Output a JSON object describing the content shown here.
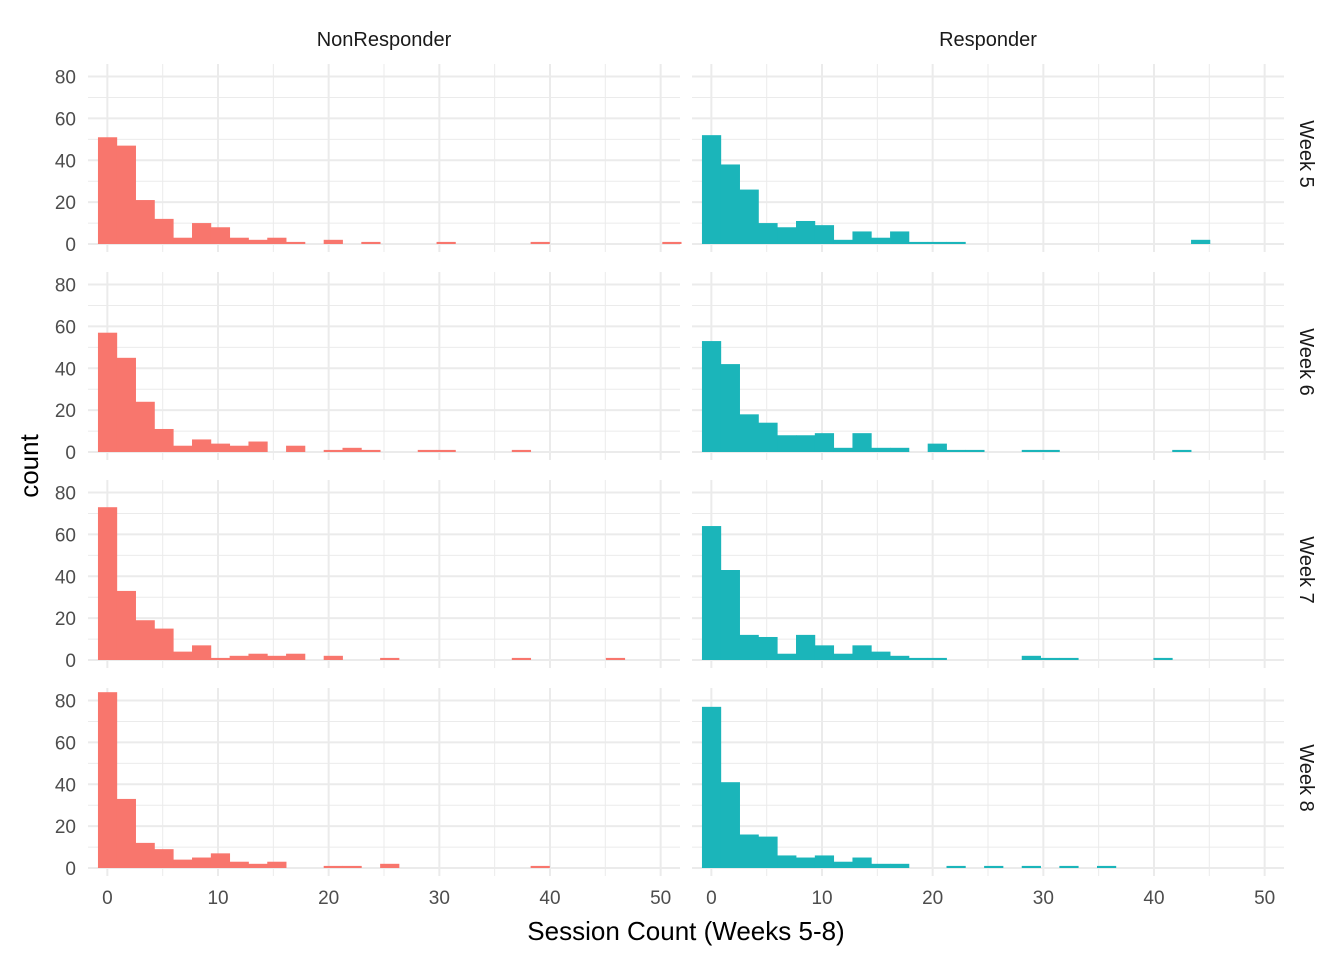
{
  "chart_data": {
    "type": "bar",
    "subtype": "histogram",
    "xlabel": "Session Count (Weeks 5-8)",
    "ylabel": "count",
    "x_ticks": [
      0,
      10,
      20,
      30,
      40,
      50
    ],
    "y_ticks": [
      0,
      20,
      40,
      60,
      80
    ],
    "xlim": [
      -1.75,
      51.75
    ],
    "ylim": [
      0,
      86
    ],
    "bin_width": 1.7,
    "bin_start": -0.85,
    "columns": [
      "NonResponder",
      "Responder"
    ],
    "rows": [
      "Week 5",
      "Week 6",
      "Week 7",
      "Week 8"
    ],
    "colors": {
      "NonResponder": "#f8766d",
      "Responder": "#1bb5ba"
    },
    "panels": [
      {
        "group": "NonResponder",
        "week": "Week 5",
        "counts": [
          51,
          47,
          21,
          12,
          3,
          10,
          8,
          3,
          2,
          3,
          1,
          0,
          2,
          0,
          1,
          0,
          0,
          0,
          1,
          0,
          0,
          0,
          0,
          1,
          0,
          0,
          0,
          0,
          0,
          0,
          1
        ]
      },
      {
        "group": "Responder",
        "week": "Week 5",
        "counts": [
          52,
          38,
          26,
          10,
          8,
          11,
          9,
          2,
          6,
          3,
          6,
          1,
          1,
          1,
          0,
          0,
          0,
          0,
          0,
          0,
          0,
          0,
          0,
          0,
          0,
          0,
          2
        ]
      },
      {
        "group": "NonResponder",
        "week": "Week 6",
        "counts": [
          57,
          45,
          24,
          11,
          3,
          6,
          4,
          3,
          5,
          0,
          3,
          0,
          1,
          2,
          1,
          0,
          0,
          1,
          1,
          0,
          0,
          0,
          1
        ]
      },
      {
        "group": "Responder",
        "week": "Week 6",
        "counts": [
          53,
          42,
          18,
          14,
          8,
          8,
          9,
          2,
          9,
          2,
          2,
          0,
          4,
          1,
          1,
          0,
          0,
          1,
          1,
          0,
          0,
          0,
          0,
          0,
          0,
          1
        ]
      },
      {
        "group": "NonResponder",
        "week": "Week 7",
        "counts": [
          73,
          33,
          19,
          15,
          4,
          7,
          1,
          2,
          3,
          2,
          3,
          0,
          2,
          0,
          0,
          1,
          0,
          0,
          0,
          0,
          0,
          0,
          1,
          0,
          0,
          0,
          0,
          1
        ]
      },
      {
        "group": "Responder",
        "week": "Week 7",
        "counts": [
          64,
          43,
          12,
          11,
          3,
          12,
          7,
          3,
          7,
          4,
          2,
          1,
          1,
          0,
          0,
          0,
          0,
          2,
          1,
          1,
          0,
          0,
          0,
          0,
          1
        ]
      },
      {
        "group": "NonResponder",
        "week": "Week 8",
        "counts": [
          84,
          33,
          12,
          9,
          4,
          5,
          7,
          3,
          2,
          3,
          0,
          0,
          1,
          1,
          0,
          2,
          0,
          0,
          0,
          0,
          0,
          0,
          0,
          1
        ]
      },
      {
        "group": "Responder",
        "week": "Week 8",
        "counts": [
          77,
          41,
          16,
          15,
          6,
          5,
          6,
          3,
          5,
          2,
          2,
          0,
          0,
          1,
          0,
          1,
          0,
          1,
          0,
          1,
          0,
          1
        ]
      }
    ]
  }
}
